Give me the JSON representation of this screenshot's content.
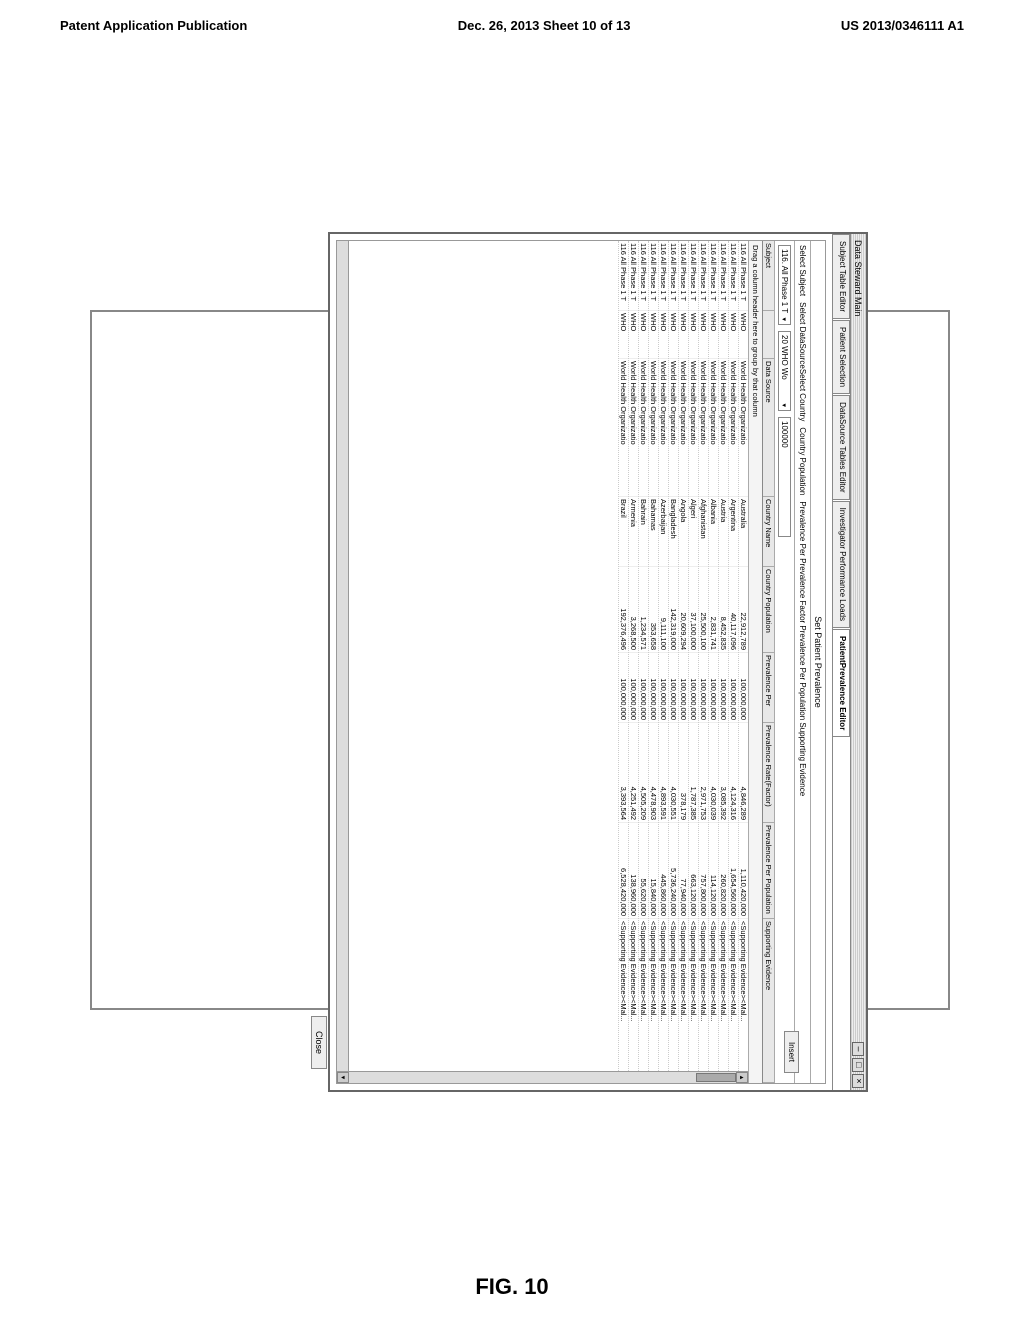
{
  "page_header": {
    "left": "Patent Application Publication",
    "center": "Dec. 26, 2013  Sheet 10 of 13",
    "right": "US 2013/0346111 A1"
  },
  "figure_caption": "FIG. 10",
  "window": {
    "title": "Data Steward Main",
    "tabs": [
      "Subject Table Editor",
      "Patient Selection",
      "DataSource Tables Editor",
      "Investigator Performance Loads",
      "PatientPrevalence Editor"
    ],
    "active_tab": 4,
    "subtitle": "Set Patient Prevalence",
    "filters": {
      "subject_label": "Select Subject",
      "subject_value": "116. All Phase 1 T",
      "datasource_label": "Select DataSourceSelect Country",
      "datasource_value": "20 WHO Wo",
      "pop_label": "Country Population",
      "pop_value": "100000",
      "extra_labels": "Prevalence Per Prevalence Factor  Prevalence Per Population Supporting Evidence",
      "insert_label": "Insert"
    },
    "grid": {
      "columns": [
        "Subject",
        "",
        "Data Source",
        "Country Name",
        "Country Population",
        "Prevalence Per",
        "Prevalence Rate(Factor)",
        "Prevalence Per Population",
        "Supporting Evidence"
      ],
      "drag_hint": "Drag a column header here to group by that column",
      "rows": [
        {
          "s": "116 All Phase 1 T",
          "d": "WHO",
          "ds": "World Health Organizatio",
          "cn": "Australia",
          "cp": "22,912,789",
          "pp": "100,000,000",
          "pf": "4,846,289",
          "ppp": "1,110,420,000",
          "se": "<Supporting Evidence><Mal..."
        },
        {
          "s": "116 All Phase 1 T",
          "d": "WHO",
          "ds": "World Health Organizatio",
          "cn": "Argentina",
          "cp": "40,117,096",
          "pp": "100,000,000",
          "pf": "4,124,316",
          "ppp": "1,654,560,000",
          "se": "<Supporting Evidence><Mal..."
        },
        {
          "s": "116 All Phase 1 T",
          "d": "WHO",
          "ds": "World Health Organizatio",
          "cn": "Austria",
          "cp": "8,452,835",
          "pp": "100,000,000",
          "pf": "3,085,392",
          "ppp": "260,820,000",
          "se": "<Supporting Evidence><Mal..."
        },
        {
          "s": "116 All Phase 1 T",
          "d": "WHO",
          "ds": "World Health Organizatio",
          "cn": "Albania",
          "cp": "2,831,741",
          "pp": "100,000,000",
          "pf": "4,030,039",
          "ppp": "114,120,000",
          "se": "<Supporting Evidence><Mal..."
        },
        {
          "s": "116 All Phase 1 T",
          "d": "WHO",
          "ds": "World Health Organizatio",
          "cn": "Afghanistan",
          "cp": "25,500,100",
          "pp": "100,000,000",
          "pf": "2,971,753",
          "ppp": "757,800,000",
          "se": "<Supporting Evidence><Mal..."
        },
        {
          "s": "116 All Phase 1 T",
          "d": "WHO",
          "ds": "World Health Organizatio",
          "cn": "Algeri",
          "cp": "37,100,000",
          "pp": "100,000,000",
          "pf": "1,787,385",
          "ppp": "663,120,000",
          "se": "<Supporting Evidence><Mal..."
        },
        {
          "s": "116 All Phase 1 T",
          "d": "WHO",
          "ds": "World Health Organizatio",
          "cn": "Angola",
          "cp": "20,609,294",
          "pp": "100,000,000",
          "pf": "378,179",
          "ppp": "77,940,000",
          "se": "<Supporting Evidence><Mal..."
        },
        {
          "s": "116 All Phase 1 T",
          "d": "WHO",
          "ds": "World Health Organizatio",
          "cn": "Bangladesh",
          "cp": "142,319,000",
          "pp": "100,000,000",
          "pf": "4,030,551",
          "ppp": "5,736,240,000",
          "se": "<Supporting Evidence><Mal..."
        },
        {
          "s": "116 All Phase 1 T",
          "d": "WHO",
          "ds": "World Health Organizatio",
          "cn": "Azerbaijan",
          "cp": "9,111,100",
          "pp": "100,000,000",
          "pf": "4,893,591",
          "ppp": "445,860,000",
          "se": "<Supporting Evidence><Mal..."
        },
        {
          "s": "116 All Phase 1 T",
          "d": "WHO",
          "ds": "World Health Organizatio",
          "cn": "Bahamas",
          "cp": "353,658",
          "pp": "100,000,000",
          "pf": "4,478,903",
          "ppp": "15,840,000",
          "se": "<Supporting Evidence><Mal..."
        },
        {
          "s": "116 All Phase 1 T",
          "d": "WHO",
          "ds": "World Health Organizatio",
          "cn": "Bahrain",
          "cp": "1,234,571",
          "pp": "100,000,000",
          "pf": "4,505,209",
          "ppp": "55,620,000",
          "se": "<Supporting Evidence><Mal..."
        },
        {
          "s": "116 All Phase 1 T",
          "d": "WHO",
          "ds": "World Health Organizatio",
          "cn": "Armenia",
          "cp": "3,268,500",
          "pp": "100,000,000",
          "pf": "4,251,492",
          "ppp": "138,960,000",
          "se": "<Supporting Evidence><Mal..."
        },
        {
          "s": "116 All Phase 1 T",
          "d": "WHO",
          "ds": "World Health Organizatio",
          "cn": "Brazil",
          "cp": "192,376,496",
          "pp": "100,000,000",
          "pf": "3,393,564",
          "ppp": "6,528,420,000",
          "se": "<Supporting Evidence><Mal..."
        }
      ]
    },
    "close_label": "Close"
  }
}
